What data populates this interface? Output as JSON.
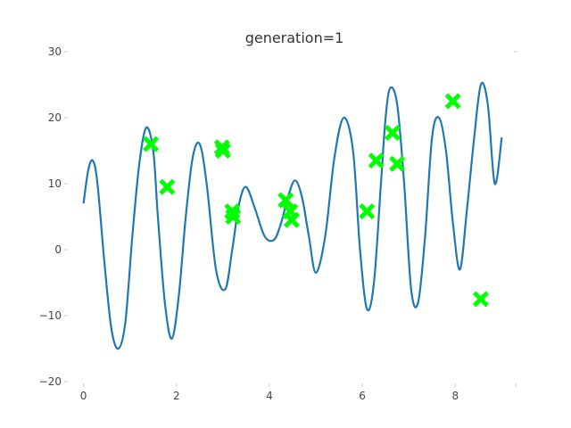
{
  "chart_data": {
    "type": "line",
    "title": "generation=1",
    "xlabel": "",
    "ylabel": "",
    "xlim": [
      -0.3,
      9.3
    ],
    "ylim": [
      -20,
      30
    ],
    "x_ticks": [
      0,
      2,
      4,
      6,
      8
    ],
    "y_ticks": [
      -20,
      -10,
      0,
      10,
      20,
      30
    ],
    "x_tick_labels": [
      "0",
      "2",
      "4",
      "6",
      "8"
    ],
    "y_tick_labels": [
      "−20",
      "−10",
      "0",
      "10",
      "20",
      "30"
    ],
    "grid": false,
    "line_color": "#1f77b4",
    "marker_color": "#00ff00",
    "series": [
      {
        "type": "line",
        "x": [
          0.0,
          0.1,
          0.2,
          0.3,
          0.45,
          0.6,
          0.75,
          0.9,
          1.05,
          1.2,
          1.35,
          1.5,
          1.6,
          1.75,
          1.9,
          2.05,
          2.2,
          2.35,
          2.5,
          2.65,
          2.85,
          3.05,
          3.2,
          3.35,
          3.5,
          3.7,
          3.9,
          4.1,
          4.25,
          4.4,
          4.55,
          4.7,
          4.85,
          5.0,
          5.2,
          5.4,
          5.6,
          5.8,
          5.95,
          6.1,
          6.25,
          6.4,
          6.5,
          6.6,
          6.75,
          6.9,
          7.05,
          7.2,
          7.35,
          7.5,
          7.65,
          7.8,
          7.95,
          8.1,
          8.25,
          8.4,
          8.55,
          8.7,
          8.85,
          9.0
        ],
        "y": [
          7.0,
          12.0,
          13.5,
          10.0,
          -2.0,
          -12.0,
          -15.0,
          -11.0,
          2.0,
          13.0,
          18.5,
          15.0,
          5.0,
          -8.0,
          -13.5,
          -7.0,
          5.0,
          14.0,
          16.0,
          10.0,
          -3.0,
          -6.0,
          0.0,
          7.0,
          9.5,
          6.0,
          2.0,
          1.5,
          4.0,
          8.0,
          10.5,
          8.0,
          2.0,
          -3.5,
          2.0,
          14.0,
          20.0,
          15.0,
          0.0,
          -9.0,
          -5.0,
          10.0,
          20.0,
          24.5,
          22.0,
          10.0,
          -6.0,
          -8.0,
          2.0,
          17.0,
          20.0,
          15.0,
          4.0,
          -3.0,
          6.0,
          16.5,
          25.0,
          22.0,
          10.0,
          17.0
        ]
      },
      {
        "type": "scatter",
        "marker": "X",
        "x": [
          1.45,
          1.8,
          2.98,
          3.0,
          3.2,
          3.22,
          4.35,
          4.45,
          4.48,
          6.1,
          6.3,
          6.65,
          6.75,
          7.95,
          8.55
        ],
        "y": [
          16.0,
          9.5,
          15.5,
          15.0,
          5.8,
          5.0,
          7.5,
          5.8,
          4.5,
          5.8,
          13.5,
          17.7,
          13.0,
          22.5,
          -7.5
        ]
      }
    ]
  }
}
